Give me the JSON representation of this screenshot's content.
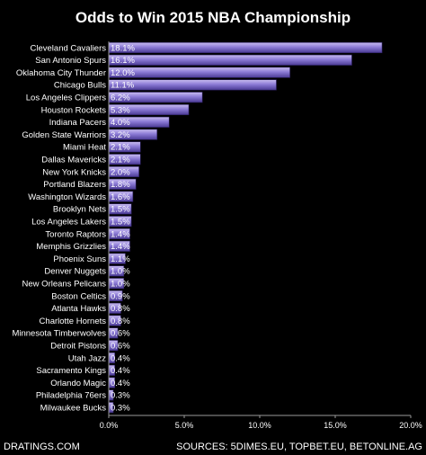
{
  "chart_data": {
    "type": "bar",
    "orientation": "horizontal",
    "title": "Odds to Win 2015 NBA Championship",
    "categories": [
      "Cleveland Cavaliers",
      "San Antonio Spurs",
      "Oklahoma City Thunder",
      "Chicago Bulls",
      "Los Angeles Clippers",
      "Houston Rockets",
      "Indiana Pacers",
      "Golden State Warriors",
      "Miami Heat",
      "Dallas Mavericks",
      "New York Knicks",
      "Portland Blazers",
      "Washington Wizards",
      "Brooklyn Nets",
      "Los Angeles Lakers",
      "Toronto Raptors",
      "Memphis Grizzlies",
      "Phoenix Suns",
      "Denver Nuggets",
      "New Orleans Pelicans",
      "Boston Celtics",
      "Atlanta Hawks",
      "Charlotte Hornets",
      "Minnesota Timberwolves",
      "Detroit Pistons",
      "Utah Jazz",
      "Sacramento Kings",
      "Orlando Magic",
      "Philadelphia 76ers",
      "Milwaukee Bucks"
    ],
    "values": [
      18.1,
      16.1,
      12.0,
      11.1,
      6.2,
      5.3,
      4.0,
      3.2,
      2.1,
      2.1,
      2.0,
      1.8,
      1.6,
      1.5,
      1.5,
      1.4,
      1.4,
      1.1,
      1.0,
      1.0,
      0.9,
      0.8,
      0.8,
      0.6,
      0.6,
      0.4,
      0.4,
      0.4,
      0.3,
      0.3
    ],
    "data_labels": [
      "18.1%",
      "16.1%",
      "12.0%",
      "11.1%",
      "6.2%",
      "5.3%",
      "4.0%",
      "3.2%",
      "2.1%",
      "2.1%",
      "2.0%",
      "1.8%",
      "1.6%",
      "1.5%",
      "1.5%",
      "1.4%",
      "1.4%",
      "1.1%",
      "1.0%",
      "1.0%",
      "0.9%",
      "0.8%",
      "0.8%",
      "0.6%",
      "0.6%",
      "0.4%",
      "0.4%",
      "0.4%",
      "0.3%",
      "0.3%"
    ],
    "x_ticks": [
      "0.0%",
      "5.0%",
      "10.0%",
      "15.0%",
      "20.0%"
    ],
    "xlim": [
      0,
      20
    ],
    "grid": false,
    "legend": false,
    "colors": {
      "background": "#000000",
      "bar_light": "#c9bdf0",
      "bar_mid": "#8c7bd6",
      "bar_dark": "#4a3a94",
      "bar_edge": "#2b1f5e",
      "axis": "#9a9a9a",
      "text": "#ffffff"
    }
  },
  "footer": {
    "left": "DRATINGS.COM",
    "right": "SOURCES: 5DIMES.EU, TOPBET.EU, BETONLINE.AG"
  }
}
